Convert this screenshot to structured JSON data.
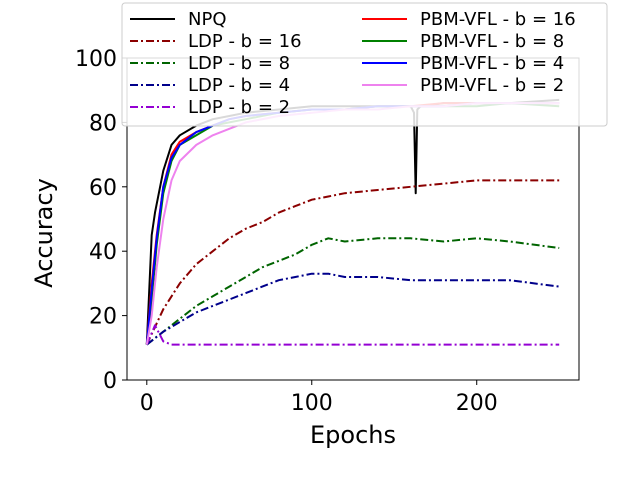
{
  "chart_data": {
    "type": "line",
    "title": "",
    "xlabel": "Epochs",
    "ylabel": "Accuracy",
    "xlim": [
      -12,
      262
    ],
    "ylim": [
      0,
      100
    ],
    "xticks": [
      0,
      100,
      200
    ],
    "yticks": [
      0,
      20,
      40,
      60,
      80,
      100
    ],
    "xtick_labels": [
      "0",
      "100",
      "200"
    ],
    "ytick_labels": [
      "0",
      "20",
      "40",
      "60",
      "80",
      "100"
    ],
    "grid": false,
    "legend_position": "top, two columns",
    "series": [
      {
        "name": "NPQ",
        "color": "#000000",
        "dash": "solid",
        "x": [
          0,
          3,
          5,
          10,
          15,
          20,
          30,
          40,
          50,
          60,
          80,
          100,
          120,
          140,
          160,
          162,
          163,
          164,
          166,
          180,
          200,
          220,
          250
        ],
        "y": [
          11,
          45,
          52,
          65,
          73,
          76,
          79,
          81,
          82,
          83,
          84,
          85,
          85,
          85,
          85,
          83,
          58,
          84,
          85,
          86,
          86,
          86,
          87
        ]
      },
      {
        "name": "LDP - b = 16",
        "color": "#8b0000",
        "dash": "dashdot",
        "x": [
          0,
          10,
          20,
          30,
          40,
          50,
          60,
          70,
          80,
          90,
          100,
          110,
          120,
          140,
          160,
          180,
          200,
          220,
          250
        ],
        "y": [
          11,
          22,
          30,
          36,
          40,
          44,
          47,
          49,
          52,
          54,
          56,
          57,
          58,
          59,
          60,
          61,
          62,
          62,
          62
        ]
      },
      {
        "name": "LDP - b = 8",
        "color": "#006400",
        "dash": "dashdot",
        "x": [
          0,
          10,
          20,
          30,
          40,
          50,
          60,
          70,
          80,
          90,
          100,
          110,
          120,
          140,
          160,
          180,
          200,
          220,
          250
        ],
        "y": [
          11,
          15,
          19,
          23,
          26,
          29,
          32,
          35,
          37,
          39,
          42,
          44,
          43,
          44,
          44,
          43,
          44,
          43,
          41
        ]
      },
      {
        "name": "LDP - b = 4",
        "color": "#00008b",
        "dash": "dashdot",
        "x": [
          0,
          10,
          20,
          30,
          40,
          50,
          60,
          70,
          80,
          90,
          100,
          110,
          120,
          140,
          160,
          180,
          200,
          220,
          250
        ],
        "y": [
          11,
          15,
          18,
          21,
          23,
          25,
          27,
          29,
          31,
          32,
          33,
          33,
          32,
          32,
          31,
          31,
          31,
          31,
          29
        ]
      },
      {
        "name": "LDP - b = 2",
        "color": "#9400d3",
        "dash": "dashdot",
        "x": [
          0,
          5,
          10,
          15,
          20,
          30,
          40,
          50,
          60,
          80,
          100,
          150,
          200,
          250
        ],
        "y": [
          11,
          17,
          12,
          11,
          11,
          11,
          11,
          11,
          11,
          11,
          11,
          11,
          11,
          11
        ]
      },
      {
        "name": "PBM-VFL - b = 16",
        "color": "#ff0000",
        "dash": "solid",
        "x": [
          0,
          3,
          6,
          10,
          15,
          20,
          30,
          40,
          50,
          60,
          80,
          100,
          120,
          140,
          160,
          180,
          200,
          220,
          250
        ],
        "y": [
          11,
          30,
          45,
          60,
          70,
          74,
          77,
          79,
          81,
          82,
          83,
          84,
          84,
          85,
          85,
          86,
          86,
          86,
          86
        ]
      },
      {
        "name": "PBM-VFL - b = 8",
        "color": "#008000",
        "dash": "solid",
        "x": [
          0,
          3,
          6,
          10,
          15,
          20,
          30,
          40,
          50,
          60,
          80,
          100,
          120,
          140,
          160,
          180,
          200,
          220,
          250
        ],
        "y": [
          11,
          25,
          42,
          58,
          68,
          73,
          76,
          79,
          80,
          81,
          83,
          84,
          84,
          85,
          85,
          85,
          85,
          86,
          85
        ]
      },
      {
        "name": "PBM-VFL - b = 4",
        "color": "#0000ff",
        "dash": "solid",
        "x": [
          0,
          3,
          6,
          10,
          15,
          20,
          30,
          40,
          50,
          60,
          80,
          100,
          120,
          140,
          160,
          180,
          200,
          220,
          250
        ],
        "y": [
          11,
          28,
          44,
          60,
          69,
          73,
          77,
          79,
          81,
          82,
          83,
          84,
          84,
          85,
          85,
          85,
          86,
          86,
          86
        ]
      },
      {
        "name": "PBM-VFL - b = 2",
        "color": "#ee82ee",
        "dash": "solid",
        "x": [
          0,
          3,
          6,
          10,
          15,
          20,
          30,
          40,
          50,
          60,
          80,
          100,
          120,
          140,
          160,
          180,
          200,
          220,
          250
        ],
        "y": [
          11,
          20,
          35,
          50,
          62,
          68,
          73,
          76,
          78,
          80,
          82,
          83,
          84,
          84,
          85,
          85,
          86,
          86,
          86
        ]
      }
    ]
  }
}
